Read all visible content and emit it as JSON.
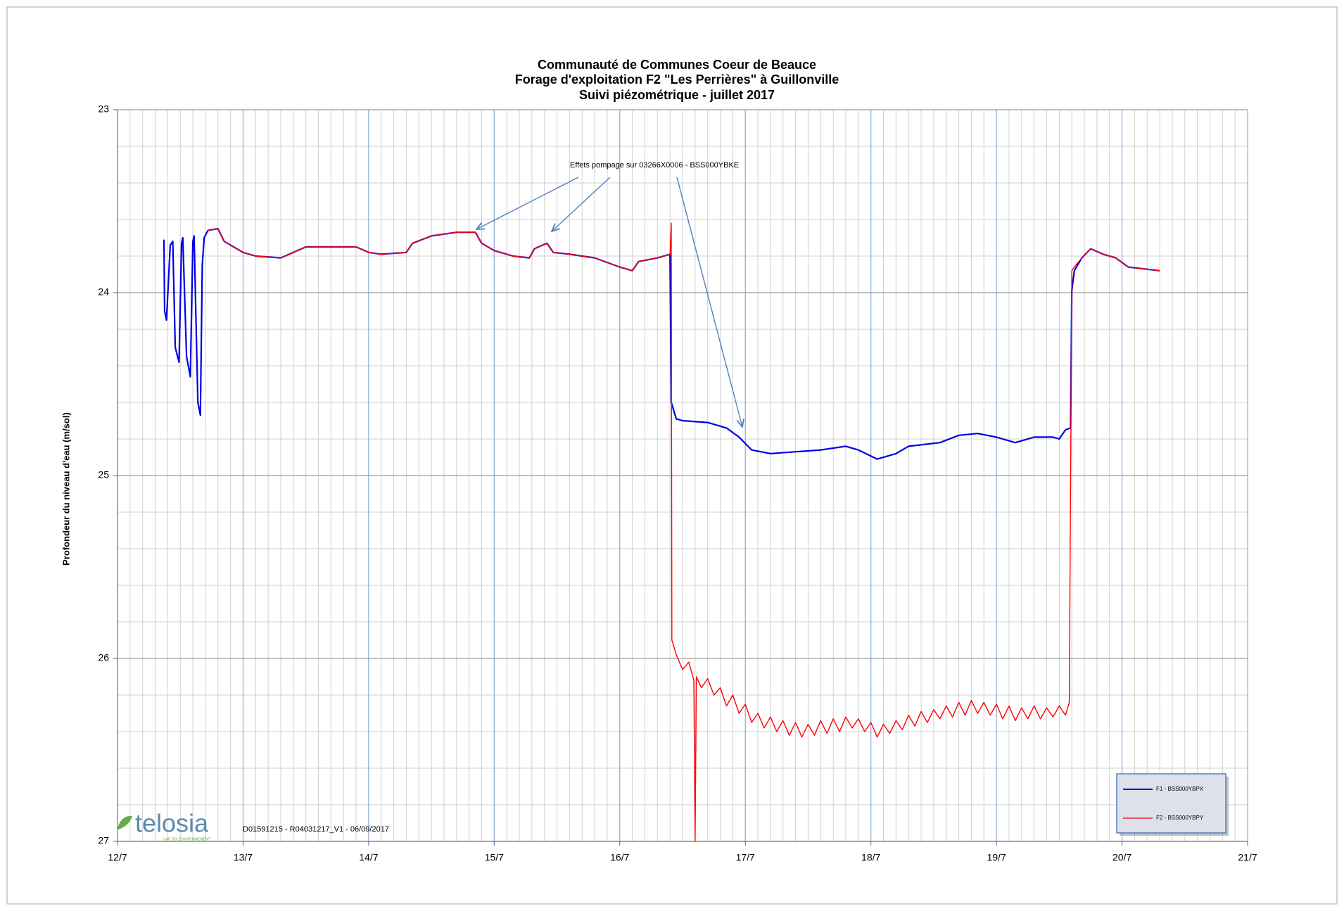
{
  "chart_data": {
    "type": "line",
    "title": [
      "Communauté de Communes Coeur de Beauce",
      "Forage d'exploitation F2 \"Les Perrières\" à Guillonville",
      "Suivi piézométrique -  juillet 2017"
    ],
    "y_label": "Profondeur du niveau d'eau  (m/sol)",
    "xlim": [
      12,
      21
    ],
    "xticks": [
      {
        "value": 12,
        "label": "12/7"
      },
      {
        "value": 13,
        "label": "13/7"
      },
      {
        "value": 14,
        "label": "14/7"
      },
      {
        "value": 15,
        "label": "15/7"
      },
      {
        "value": 16,
        "label": "16/7"
      },
      {
        "value": 17,
        "label": "17/7"
      },
      {
        "value": 18,
        "label": "18/7"
      },
      {
        "value": 19,
        "label": "19/7"
      },
      {
        "value": 20,
        "label": "20/7"
      },
      {
        "value": 21,
        "label": "21/7"
      }
    ],
    "ylim": [
      23,
      27
    ],
    "yticks": [
      23,
      24,
      25,
      26,
      27
    ],
    "y_inverted": true,
    "grid": true,
    "minor_grid": {
      "x": 0.1,
      "y": 0.2
    },
    "legend": "lower right",
    "annotation": "Effets pompage  sur 03266X0006 - BSS000YBKE",
    "footer": "D01591215 - R04031217_V1 - 06/09/2017",
    "logo": "telosia",
    "logo_subtitle": "CAP SOL ENVIRONNEMENT",
    "series": [
      {
        "name": "F1 - BSS000YBPX",
        "color": "#0000e0",
        "x": [
          12.37,
          12.375,
          12.39,
          12.42,
          12.44,
          12.46,
          12.49,
          12.51,
          12.52,
          12.55,
          12.58,
          12.6,
          12.61,
          12.64,
          12.66,
          12.675,
          12.69,
          12.72,
          12.8,
          12.85,
          13.0,
          13.1,
          13.3,
          13.5,
          13.7,
          13.9,
          14.0,
          14.1,
          14.3,
          14.35,
          14.5,
          14.7,
          14.8,
          14.85,
          14.9,
          15.0,
          15.15,
          15.28,
          15.32,
          15.42,
          15.47,
          15.6,
          15.8,
          16.0,
          16.1,
          16.15,
          16.3,
          16.4,
          16.41,
          16.45,
          16.5,
          16.7,
          16.85,
          16.95,
          17.05,
          17.2,
          17.4,
          17.6,
          17.8,
          17.9,
          18.05,
          18.2,
          18.3,
          18.55,
          18.7,
          18.85,
          19.0,
          19.15,
          19.3,
          19.45,
          19.5,
          19.55,
          19.59,
          19.6,
          19.62,
          19.68,
          19.75,
          19.85,
          19.95,
          20.05,
          20.3
        ],
        "values": [
          23.71,
          24.1,
          24.15,
          23.74,
          23.72,
          24.3,
          24.38,
          23.73,
          23.7,
          24.35,
          24.46,
          23.72,
          23.69,
          24.6,
          24.67,
          23.85,
          23.7,
          23.66,
          23.65,
          23.72,
          23.78,
          23.8,
          23.81,
          23.75,
          23.75,
          23.75,
          23.78,
          23.79,
          23.78,
          23.73,
          23.69,
          23.67,
          23.67,
          23.67,
          23.73,
          23.77,
          23.8,
          23.81,
          23.76,
          23.73,
          23.78,
          23.79,
          23.81,
          23.86,
          23.88,
          23.83,
          23.81,
          23.79,
          24.6,
          24.69,
          24.7,
          24.71,
          24.74,
          24.79,
          24.86,
          24.88,
          24.87,
          24.86,
          24.84,
          24.86,
          24.91,
          24.88,
          24.84,
          24.82,
          24.78,
          24.77,
          24.79,
          24.82,
          24.79,
          24.79,
          24.8,
          24.75,
          24.74,
          23.99,
          23.88,
          23.81,
          23.76,
          23.79,
          23.81,
          23.86,
          23.88
        ]
      },
      {
        "name": "F2 - BSS000YBPY",
        "color": "#ff0000",
        "x": [
          12.72,
          12.8,
          12.85,
          13.0,
          13.1,
          13.3,
          13.5,
          13.7,
          13.9,
          14.0,
          14.1,
          14.3,
          14.35,
          14.5,
          14.7,
          14.8,
          14.85,
          14.9,
          15.0,
          15.15,
          15.28,
          15.32,
          15.42,
          15.47,
          15.6,
          15.8,
          16.0,
          16.1,
          16.15,
          16.3,
          16.4,
          16.41,
          16.415,
          16.45,
          16.5,
          16.55,
          16.59,
          16.6,
          16.61,
          16.65,
          16.7,
          16.75,
          16.8,
          16.85,
          16.9,
          16.95,
          17.0,
          17.05,
          17.1,
          17.15,
          17.2,
          17.25,
          17.3,
          17.35,
          17.4,
          17.45,
          17.5,
          17.55,
          17.6,
          17.65,
          17.7,
          17.75,
          17.8,
          17.85,
          17.9,
          17.95,
          18.0,
          18.05,
          18.1,
          18.15,
          18.2,
          18.25,
          18.3,
          18.35,
          18.4,
          18.45,
          18.5,
          18.55,
          18.6,
          18.65,
          18.7,
          18.75,
          18.8,
          18.85,
          18.9,
          18.95,
          19.0,
          19.05,
          19.1,
          19.15,
          19.2,
          19.25,
          19.3,
          19.35,
          19.4,
          19.45,
          19.5,
          19.55,
          19.58,
          19.6,
          19.62,
          19.68,
          19.75,
          19.85,
          19.95,
          20.05,
          20.3
        ],
        "values": [
          23.66,
          23.65,
          23.72,
          23.78,
          23.8,
          23.81,
          23.75,
          23.75,
          23.75,
          23.78,
          23.79,
          23.78,
          23.73,
          23.69,
          23.67,
          23.67,
          23.67,
          23.73,
          23.77,
          23.8,
          23.81,
          23.76,
          23.73,
          23.78,
          23.79,
          23.81,
          23.86,
          23.88,
          23.83,
          23.81,
          23.79,
          23.62,
          25.9,
          25.98,
          26.06,
          26.02,
          26.12,
          27.0,
          26.1,
          26.16,
          26.11,
          26.2,
          26.16,
          26.26,
          26.2,
          26.3,
          26.25,
          26.35,
          26.3,
          26.38,
          26.32,
          26.4,
          26.34,
          26.42,
          26.35,
          26.43,
          26.36,
          26.42,
          26.34,
          26.41,
          26.33,
          26.4,
          26.32,
          26.38,
          26.33,
          26.4,
          26.35,
          26.43,
          26.36,
          26.41,
          26.34,
          26.39,
          26.31,
          26.37,
          26.29,
          26.35,
          26.28,
          26.33,
          26.26,
          26.32,
          26.24,
          26.31,
          26.23,
          26.3,
          26.24,
          26.31,
          26.25,
          26.33,
          26.26,
          26.34,
          26.27,
          26.33,
          26.26,
          26.33,
          26.27,
          26.32,
          26.26,
          26.31,
          26.24,
          23.88,
          23.86,
          23.81,
          23.76,
          23.79,
          23.81,
          23.86,
          23.88
        ]
      }
    ]
  }
}
